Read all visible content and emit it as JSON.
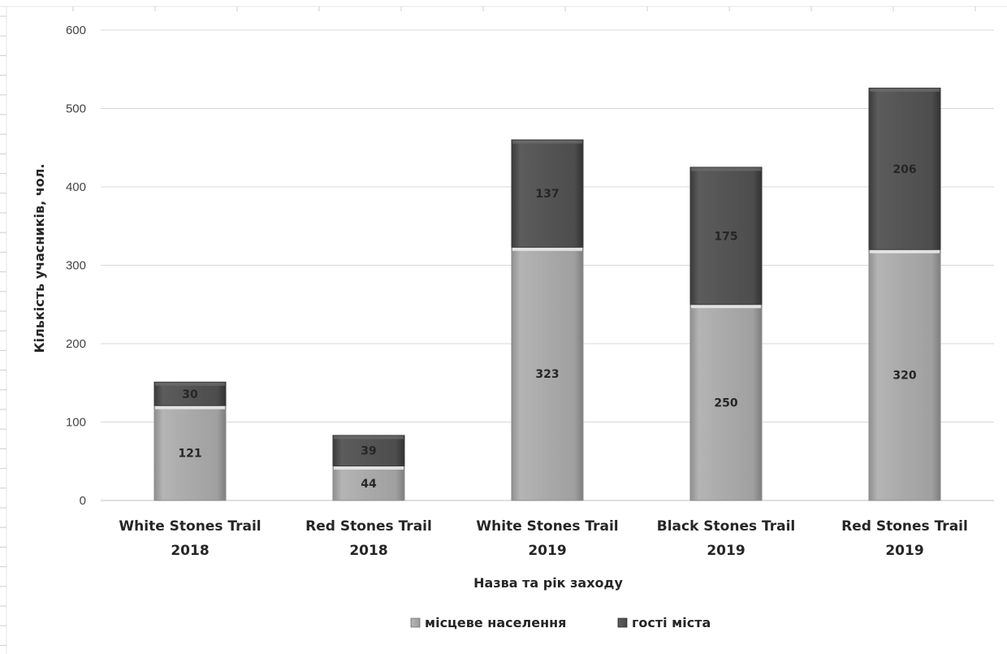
{
  "chart_data": {
    "type": "bar",
    "stacked": true,
    "categories": [
      [
        "White Stones Trail",
        "2018"
      ],
      [
        "Red Stones Trail",
        "2018"
      ],
      [
        "White Stones Trail",
        "2019"
      ],
      [
        "Black Stones Trail",
        "2019"
      ],
      [
        "Red Stones Trail",
        "2019"
      ]
    ],
    "series": [
      {
        "name": "місцеве населення",
        "values": [
          121,
          44,
          323,
          250,
          320
        ],
        "labels": [
          "121",
          "44",
          "323",
          "250",
          "320"
        ],
        "color": "#a6a6a6"
      },
      {
        "name": "гості міста",
        "values": [
          30,
          39,
          137,
          175,
          206
        ],
        "labels": [
          "30",
          "39",
          "137",
          "175",
          "206"
        ],
        "color": "#545454"
      }
    ],
    "title": "",
    "xlabel": "Назва та рік заходу",
    "ylabel": "Кількість учасників, чол.",
    "ylim": [
      0,
      600
    ],
    "yticks": [
      "0",
      "100",
      "200",
      "300",
      "400",
      "500",
      "600"
    ],
    "grid": true,
    "legend": "bottom"
  }
}
